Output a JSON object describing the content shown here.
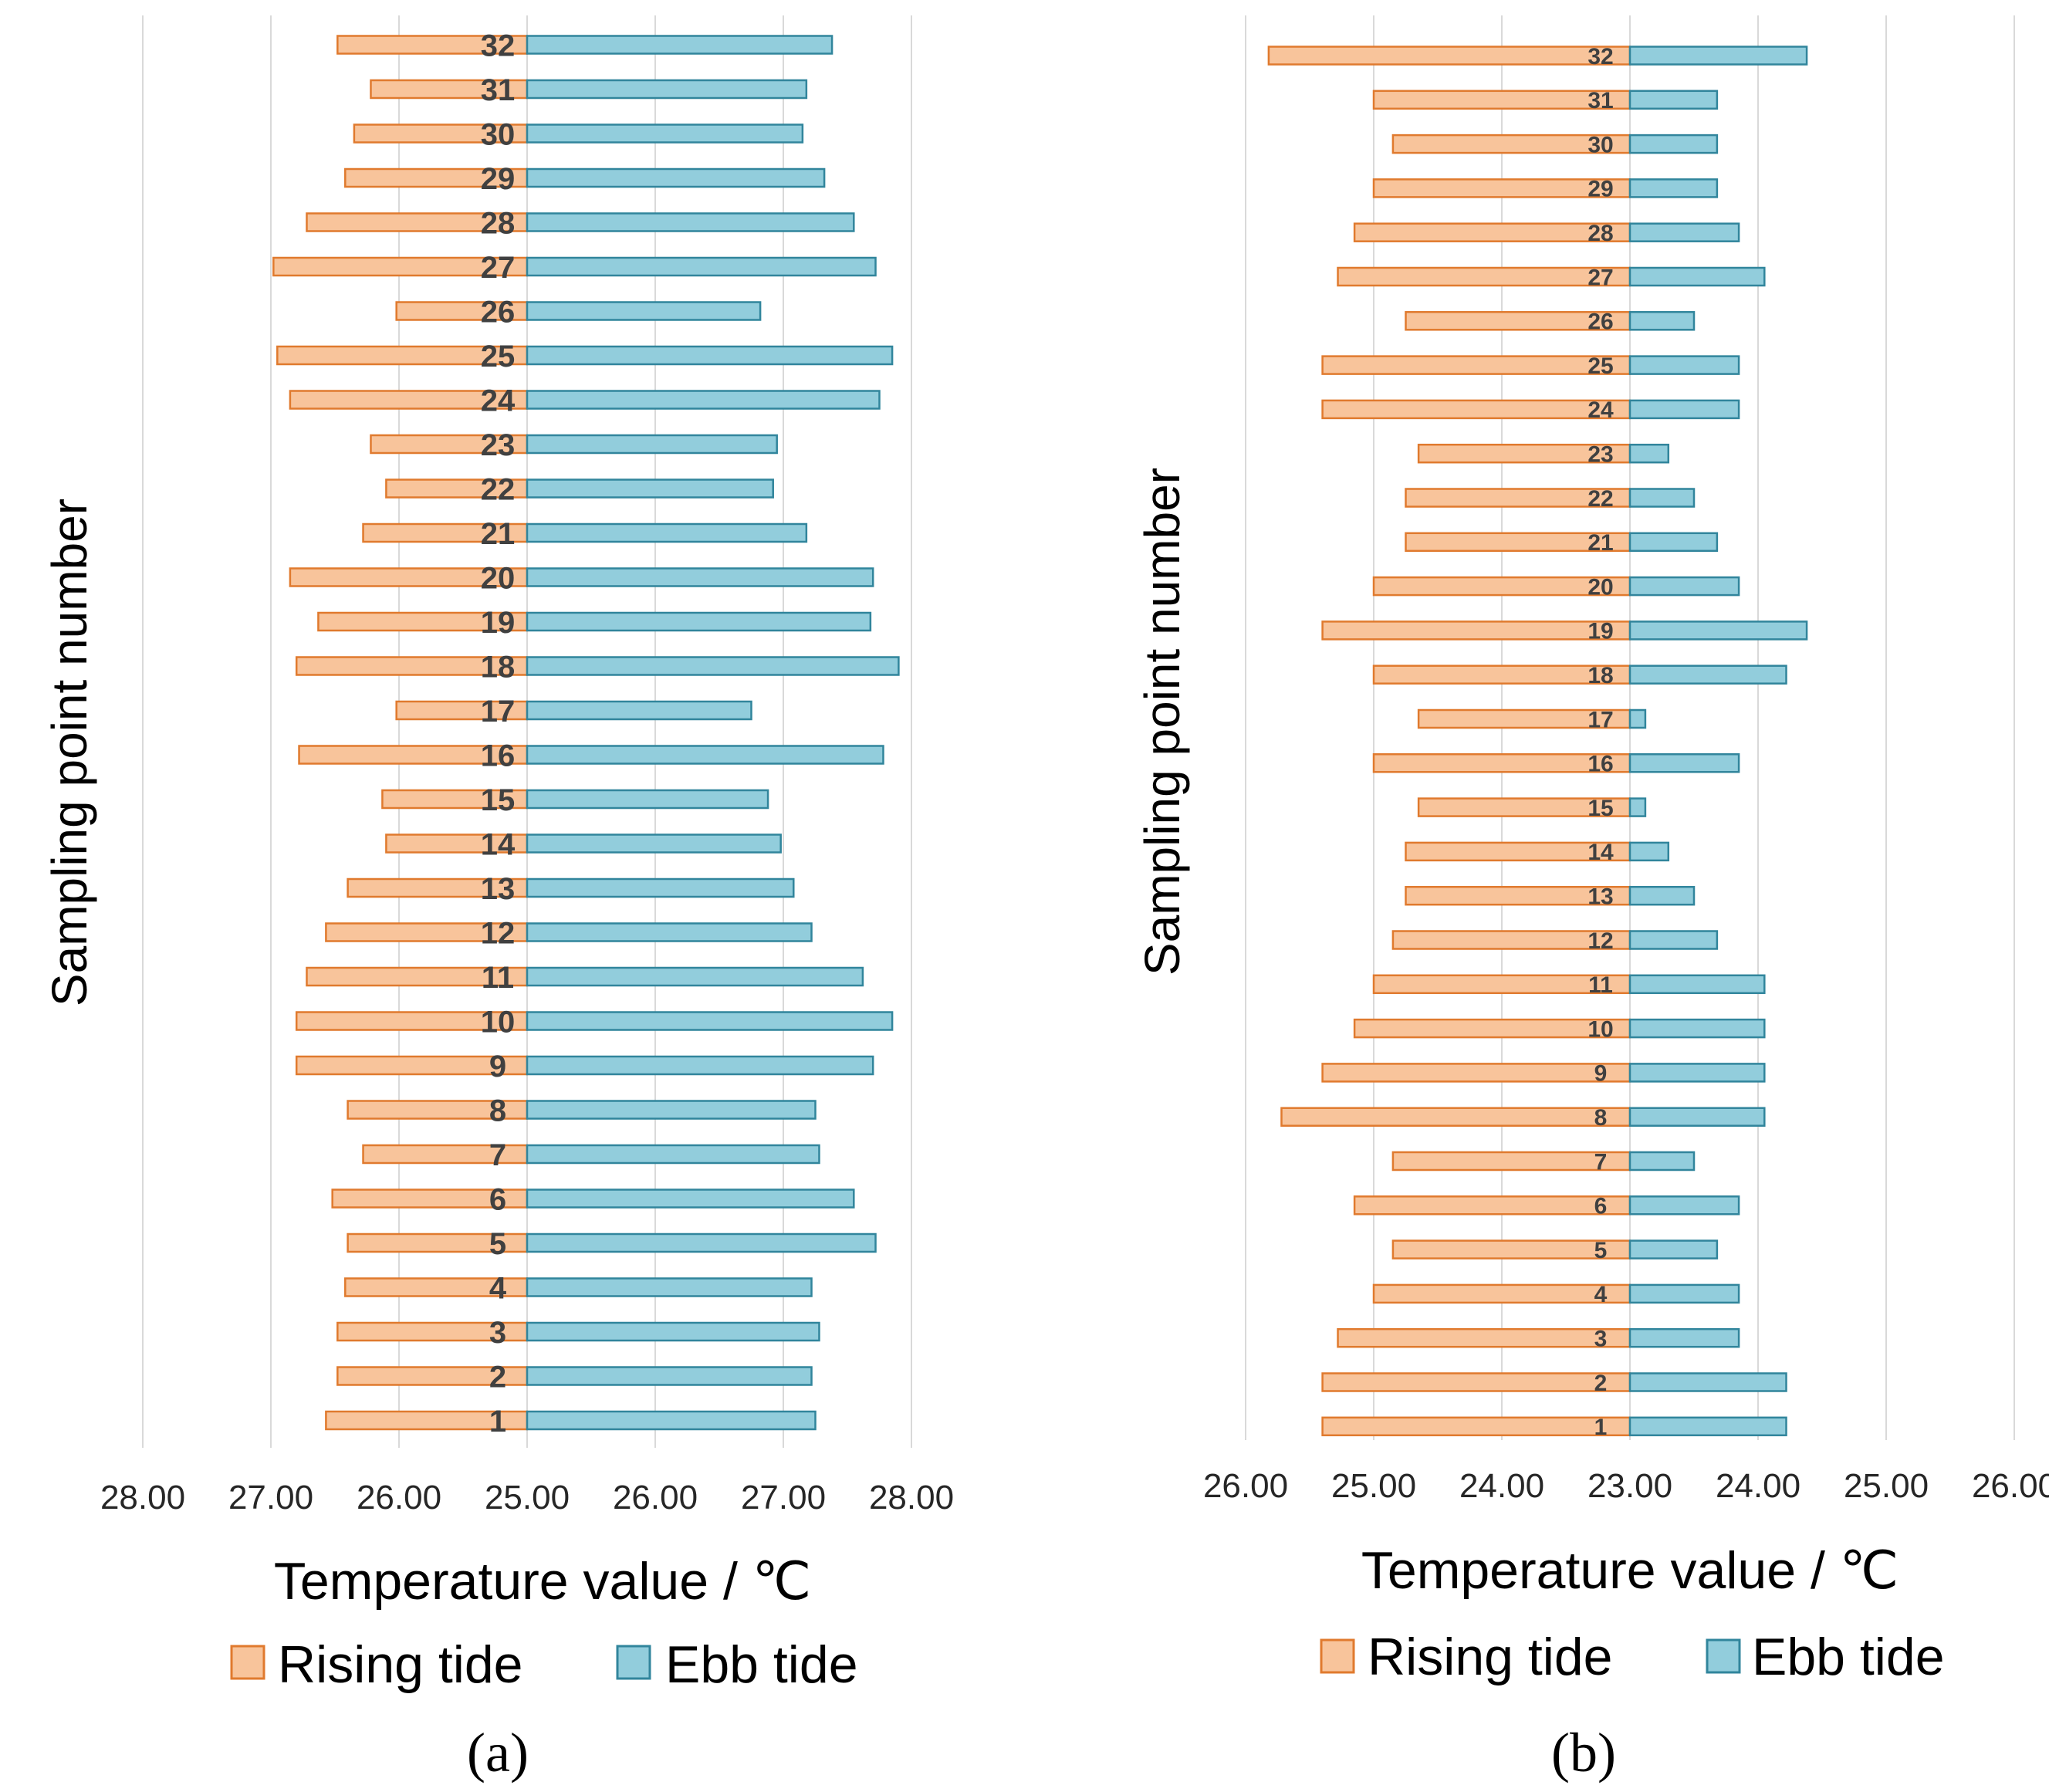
{
  "colors": {
    "rising_fill": "#F8C49B",
    "rising_stroke": "#E07A2E",
    "ebb_fill": "#92CDDC",
    "ebb_stroke": "#31859C",
    "grid": "#D9D9D9"
  },
  "legend": {
    "rising": "Rising tide",
    "ebb": "Ebb tide"
  },
  "chart_data": [
    {
      "type": "bar",
      "orientation": "horizontal",
      "panel_label": "a",
      "panel_label_text": "(a)",
      "xlabel": "Temperature value / ℃",
      "ylabel": "Sampling point number",
      "x_ticks": [
        "28.00",
        "27.00",
        "26.00",
        "25.00",
        "26.00",
        "27.00",
        "28.00"
      ],
      "categories": [
        "1",
        "2",
        "3",
        "4",
        "5",
        "6",
        "7",
        "8",
        "9",
        "10",
        "11",
        "12",
        "13",
        "14",
        "15",
        "16",
        "17",
        "18",
        "19",
        "20",
        "21",
        "22",
        "23",
        "24",
        "25",
        "26",
        "27",
        "28",
        "29",
        "30",
        "31",
        "32"
      ],
      "series": [
        {
          "name": "Rising tide",
          "side": "left",
          "values": [
            26.57,
            26.48,
            26.48,
            26.42,
            26.4,
            26.52,
            26.28,
            26.4,
            26.8,
            26.8,
            26.72,
            26.57,
            26.4,
            26.1,
            26.13,
            26.78,
            26.02,
            26.8,
            26.63,
            26.85,
            26.28,
            26.1,
            26.22,
            26.85,
            26.95,
            26.02,
            26.98,
            26.72,
            26.42,
            26.35,
            26.22,
            26.48
          ]
        },
        {
          "name": "Ebb tide",
          "side": "right",
          "values": [
            27.25,
            27.22,
            27.28,
            27.22,
            27.72,
            27.55,
            27.28,
            27.25,
            27.7,
            27.85,
            27.62,
            27.22,
            27.08,
            26.98,
            26.88,
            27.78,
            26.75,
            27.9,
            27.68,
            27.7,
            27.18,
            26.92,
            26.95,
            27.75,
            27.85,
            26.82,
            27.72,
            27.55,
            27.32,
            27.15,
            27.18,
            27.38
          ]
        }
      ]
    },
    {
      "type": "bar",
      "orientation": "horizontal",
      "panel_label": "b",
      "panel_label_text": "(b)",
      "xlabel": "Temperature value / ℃",
      "ylabel": "Sampling point number",
      "x_ticks": [
        "26.00",
        "25.00",
        "24.00",
        "23.00",
        "24.00",
        "25.00",
        "26.00"
      ],
      "categories": [
        "1",
        "2",
        "3",
        "4",
        "5",
        "6",
        "7",
        "8",
        "9",
        "10",
        "11",
        "12",
        "13",
        "14",
        "15",
        "16",
        "17",
        "18",
        "19",
        "20",
        "21",
        "22",
        "23",
        "24",
        "25",
        "26",
        "27",
        "28",
        "29",
        "30",
        "31",
        "32"
      ],
      "series": [
        {
          "name": "Rising tide",
          "side": "left",
          "values": [
            25.4,
            25.4,
            25.28,
            25.0,
            24.85,
            25.15,
            24.85,
            25.72,
            25.4,
            25.15,
            25.0,
            24.85,
            24.75,
            24.75,
            24.65,
            25.0,
            24.65,
            25.0,
            25.4,
            25.0,
            24.75,
            24.75,
            24.65,
            25.4,
            25.4,
            24.75,
            25.28,
            25.15,
            25.0,
            24.85,
            25.0,
            25.82
          ]
        },
        {
          "name": "Ebb tide",
          "side": "right",
          "values": [
            24.22,
            24.22,
            23.85,
            23.85,
            23.68,
            23.85,
            23.5,
            24.05,
            24.05,
            24.05,
            24.05,
            23.68,
            23.5,
            23.3,
            23.12,
            23.85,
            23.12,
            24.22,
            24.38,
            23.85,
            23.68,
            23.5,
            23.3,
            23.85,
            23.85,
            23.5,
            24.05,
            23.85,
            23.68,
            23.68,
            23.68,
            24.38
          ]
        }
      ]
    }
  ]
}
